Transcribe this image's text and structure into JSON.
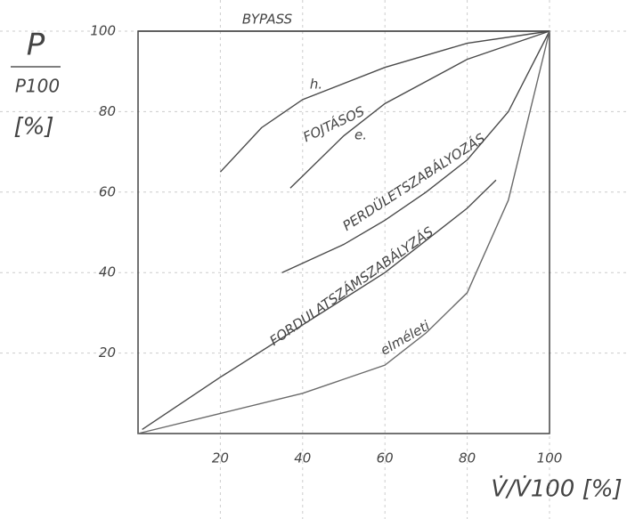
{
  "chart_data": {
    "type": "line",
    "y_label": {
      "numerator": "P",
      "denominator": "P100",
      "unit": "[%]"
    },
    "x_label": "V̇/V̇100 [%]",
    "annotations": [
      "FOJTÁSOS"
    ],
    "xlim": [
      0,
      100
    ],
    "ylim": [
      0,
      100
    ],
    "xticks": [
      20,
      40,
      60,
      80,
      100
    ],
    "yticks": [
      20,
      40,
      60,
      80,
      100
    ],
    "grid": true,
    "series": [
      {
        "name": "BYPASS",
        "color": "#4a4a4a",
        "x": [
          0,
          100
        ],
        "values": [
          100,
          100
        ]
      },
      {
        "name": "h.",
        "color": "#4a4a4a",
        "x": [
          20,
          30,
          40,
          60,
          80,
          100
        ],
        "values": [
          65,
          76,
          83,
          91,
          97,
          100
        ]
      },
      {
        "name": "e.",
        "color": "#4a4a4a",
        "x": [
          37,
          40,
          50,
          60,
          80,
          100
        ],
        "values": [
          61,
          64,
          74,
          82,
          93,
          100
        ]
      },
      {
        "name": "PERDÜLETSZABÁLYOZÁS",
        "color": "#4a4a4a",
        "x": [
          35,
          50,
          60,
          70,
          80,
          90,
          100
        ],
        "values": [
          40,
          47,
          53,
          60,
          68,
          80,
          100
        ]
      },
      {
        "name": "FORDULATSZÁMSZABÁLYZÁS",
        "color": "#4a4a4a",
        "x": [
          1,
          20,
          40,
          60,
          70,
          80,
          87
        ],
        "values": [
          1,
          14,
          27,
          40,
          48,
          56,
          63
        ]
      },
      {
        "name": "elméleti",
        "color": "#6a6a6a",
        "x": [
          0,
          20,
          40,
          60,
          70,
          80,
          90,
          100
        ],
        "values": [
          0,
          5,
          10,
          17,
          25,
          35,
          58,
          100
        ]
      }
    ]
  }
}
